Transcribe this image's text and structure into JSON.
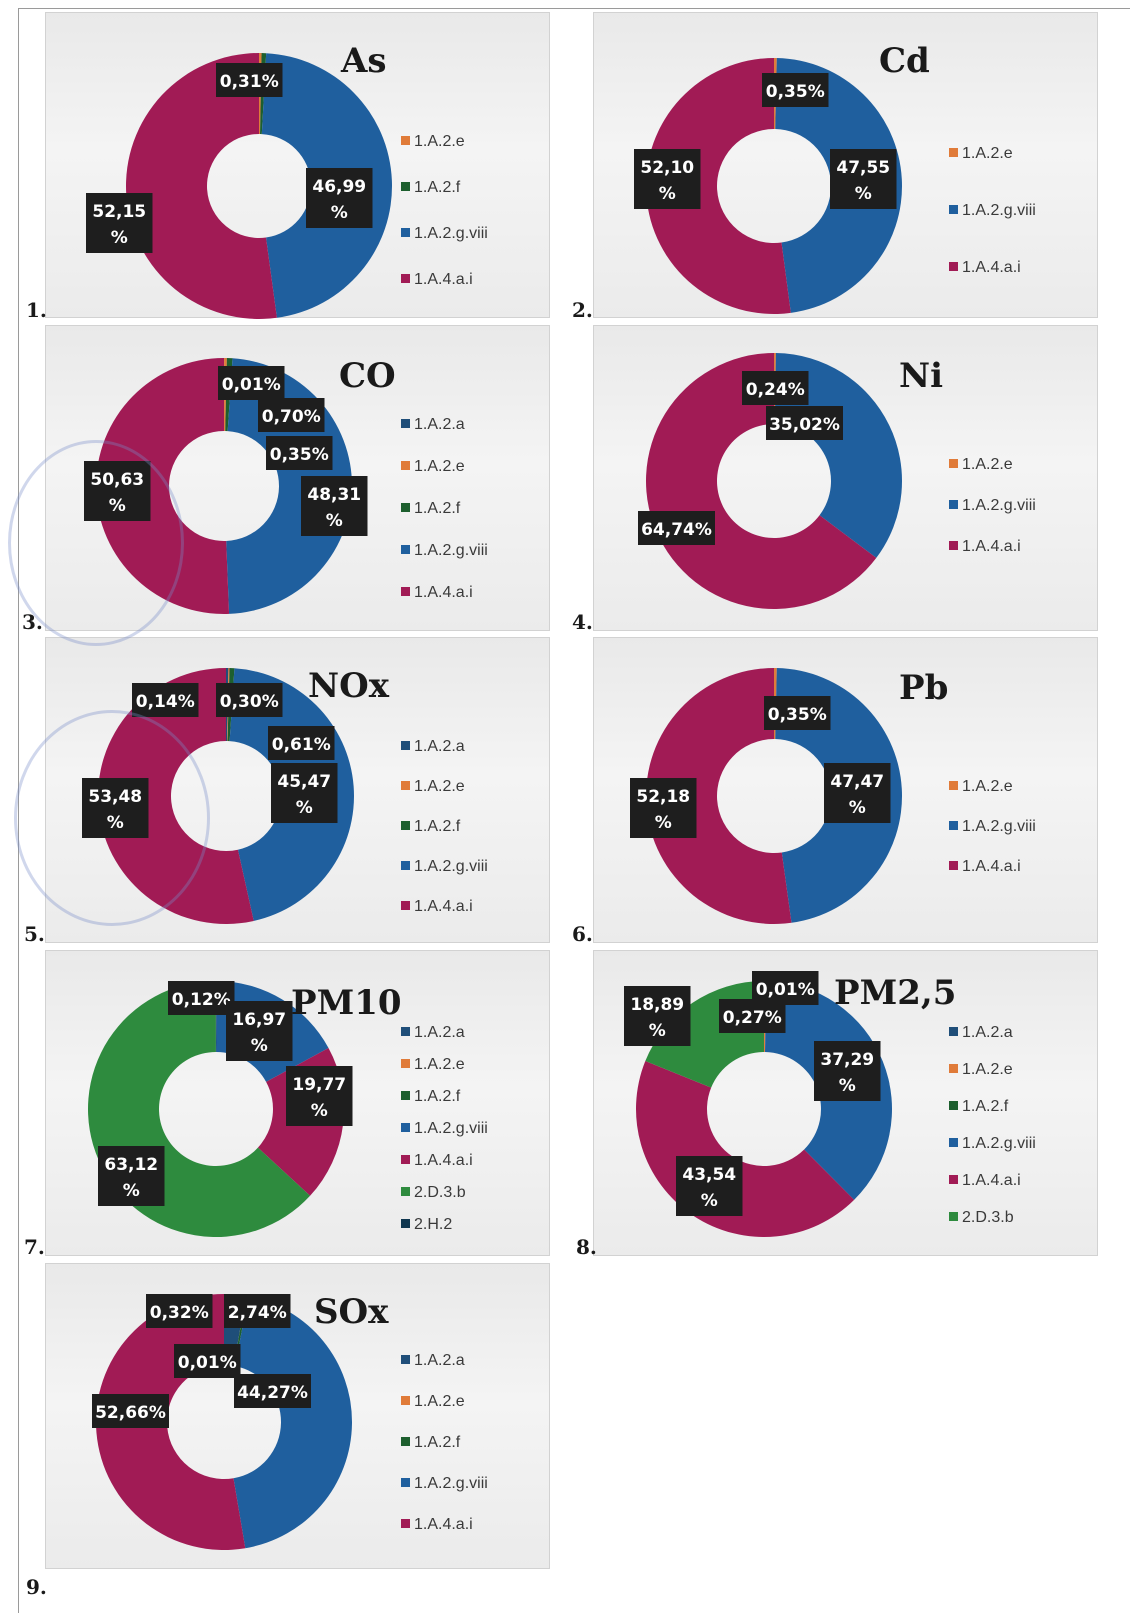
{
  "colors": {
    "1.A.2.a": "#1f4e79",
    "1.A.2.e": "#e07b39",
    "1.A.2.f": "#1d5f2e",
    "1.A.2.g.viii": "#1f5f9e",
    "1.A.4.a.i": "#a11b55",
    "2.D.3.b": "#2e8b3e",
    "2.H.2": "#103750"
  },
  "chart_data": [
    {
      "type": "pie",
      "title": "As",
      "number": "1.",
      "legend": [
        "1.A.2.e",
        "1.A.2.f",
        "1.A.2.g.viii",
        "1.A.4.a.i"
      ],
      "slices": [
        {
          "category": "1.A.2.e",
          "value": 0.31,
          "label": "0,31%"
        },
        {
          "category": "1.A.2.f",
          "value": 0.55,
          "label": ""
        },
        {
          "category": "1.A.2.g.viii",
          "value": 46.99,
          "label": "46,99\n%"
        },
        {
          "category": "1.A.4.a.i",
          "value": 52.15,
          "label": "52,15\n%"
        }
      ]
    },
    {
      "type": "pie",
      "title": "Cd",
      "number": "2.",
      "legend": [
        "1.A.2.e",
        "1.A.2.g.viii",
        "1.A.4.a.i"
      ],
      "slices": [
        {
          "category": "1.A.2.e",
          "value": 0.35,
          "label": "0,35%"
        },
        {
          "category": "1.A.2.g.viii",
          "value": 47.55,
          "label": "47,55\n%"
        },
        {
          "category": "1.A.4.a.i",
          "value": 52.1,
          "label": "52,10\n%"
        }
      ]
    },
    {
      "type": "pie",
      "title": "CO",
      "number": "3.",
      "legend": [
        "1.A.2.a",
        "1.A.2.e",
        "1.A.2.f",
        "1.A.2.g.viii",
        "1.A.4.a.i"
      ],
      "slices": [
        {
          "category": "1.A.2.a",
          "value": 0.01,
          "label": "0,01%"
        },
        {
          "category": "1.A.2.e",
          "value": 0.35,
          "label": "0,35%"
        },
        {
          "category": "1.A.2.f",
          "value": 0.7,
          "label": "0,70%"
        },
        {
          "category": "1.A.2.g.viii",
          "value": 48.31,
          "label": "48,31\n%"
        },
        {
          "category": "1.A.4.a.i",
          "value": 50.63,
          "label": "50,63\n%"
        }
      ]
    },
    {
      "type": "pie",
      "title": "Ni",
      "number": "4.",
      "legend": [
        "1.A.2.e",
        "1.A.2.g.viii",
        "1.A.4.a.i"
      ],
      "slices": [
        {
          "category": "1.A.2.e",
          "value": 0.24,
          "label": "0,24%"
        },
        {
          "category": "1.A.2.g.viii",
          "value": 35.02,
          "label": "35,02%"
        },
        {
          "category": "1.A.4.a.i",
          "value": 64.74,
          "label": "64,74%"
        }
      ]
    },
    {
      "type": "pie",
      "title": "NOx",
      "number": "5.",
      "legend": [
        "1.A.2.a",
        "1.A.2.e",
        "1.A.2.f",
        "1.A.2.g.viii",
        "1.A.4.a.i"
      ],
      "slices": [
        {
          "category": "1.A.2.a",
          "value": 0.3,
          "label": "0,30%"
        },
        {
          "category": "1.A.2.e",
          "value": 0.14,
          "label": "0,14%"
        },
        {
          "category": "1.A.2.f",
          "value": 0.61,
          "label": "0,61%"
        },
        {
          "category": "1.A.2.g.viii",
          "value": 45.47,
          "label": "45,47\n%"
        },
        {
          "category": "1.A.4.a.i",
          "value": 53.48,
          "label": "53,48\n%"
        }
      ]
    },
    {
      "type": "pie",
      "title": "Pb",
      "number": "6.",
      "legend": [
        "1.A.2.e",
        "1.A.2.g.viii",
        "1.A.4.a.i"
      ],
      "slices": [
        {
          "category": "1.A.2.e",
          "value": 0.35,
          "label": "0,35%"
        },
        {
          "category": "1.A.2.g.viii",
          "value": 47.47,
          "label": "47,47\n%"
        },
        {
          "category": "1.A.4.a.i",
          "value": 52.18,
          "label": "52,18\n%"
        }
      ]
    },
    {
      "type": "pie",
      "title": "PM10",
      "number": "7.",
      "legend": [
        "1.A.2.a",
        "1.A.2.e",
        "1.A.2.f",
        "1.A.2.g.viii",
        "1.A.4.a.i",
        "2.D.3.b",
        "2.H.2"
      ],
      "slices": [
        {
          "category": "1.A.2.a",
          "value": 0.12,
          "label": "0,12%"
        },
        {
          "category": "1.A.2.g.viii",
          "value": 16.97,
          "label": "16,97\n%"
        },
        {
          "category": "1.A.4.a.i",
          "value": 19.77,
          "label": "19,77\n%"
        },
        {
          "category": "2.D.3.b",
          "value": 63.12,
          "label": "63,12\n%"
        },
        {
          "category": "2.H.2",
          "value": 0.02,
          "label": ""
        }
      ]
    },
    {
      "type": "pie",
      "title": "PM2,5",
      "number": "8.",
      "legend": [
        "1.A.2.a",
        "1.A.2.e",
        "1.A.2.f",
        "1.A.2.g.viii",
        "1.A.4.a.i",
        "2.D.3.b"
      ],
      "slices": [
        {
          "category": "1.A.2.a",
          "value": 0.01,
          "label": "0,01%"
        },
        {
          "category": "1.A.2.e",
          "value": 0.27,
          "label": "0,27%"
        },
        {
          "category": "1.A.2.g.viii",
          "value": 37.29,
          "label": "37,29\n%"
        },
        {
          "category": "1.A.4.a.i",
          "value": 43.54,
          "label": "43,54\n%"
        },
        {
          "category": "2.D.3.b",
          "value": 18.89,
          "label": "18,89\n%"
        }
      ]
    },
    {
      "type": "pie",
      "title": "SOx",
      "number": "9.",
      "legend": [
        "1.A.2.a",
        "1.A.2.e",
        "1.A.2.f",
        "1.A.2.g.viii",
        "1.A.4.a.i"
      ],
      "slices": [
        {
          "category": "1.A.2.a",
          "value": 2.74,
          "label": "2,74%"
        },
        {
          "category": "1.A.2.e",
          "value": 0.01,
          "label": "0,01%"
        },
        {
          "category": "1.A.2.f",
          "value": 0.32,
          "label": "0,32%"
        },
        {
          "category": "1.A.2.g.viii",
          "value": 44.27,
          "label": "44,27%"
        },
        {
          "category": "1.A.4.a.i",
          "value": 52.66,
          "label": "52,66%"
        }
      ]
    }
  ]
}
